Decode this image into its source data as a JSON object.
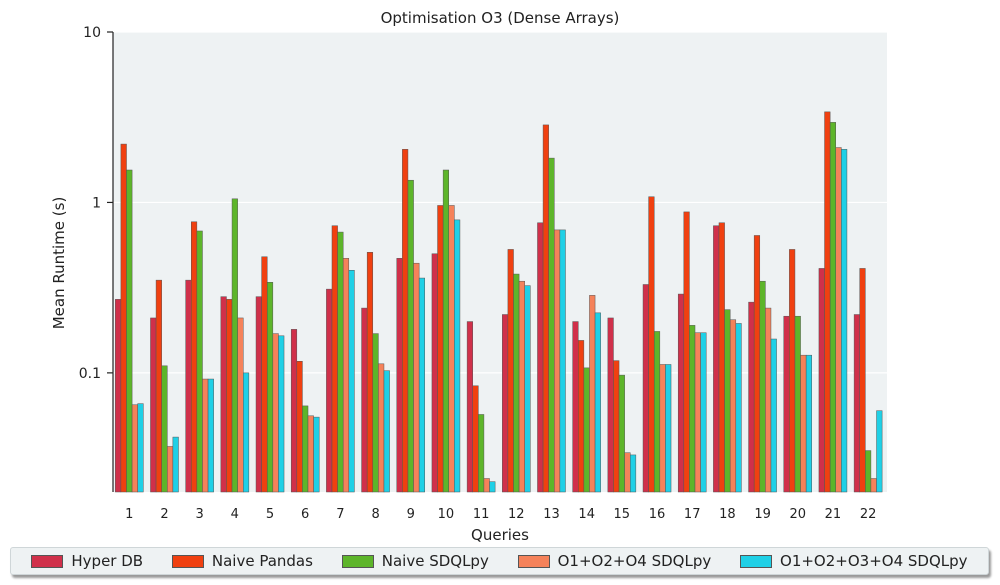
{
  "chart_data": {
    "type": "bar",
    "title": "Optimisation O3 (Dense Arrays)",
    "xlabel": "Queries",
    "ylabel": "Mean Runtime (s)",
    "yscale": "log",
    "ylim": [
      0.02,
      10
    ],
    "yticks": [
      0.1,
      1,
      10
    ],
    "ytick_labels": [
      "0.1",
      "1",
      "10"
    ],
    "grid": true,
    "legend_position": "bottom",
    "categories": [
      "1",
      "2",
      "3",
      "4",
      "5",
      "6",
      "7",
      "8",
      "9",
      "10",
      "11",
      "12",
      "13",
      "14",
      "15",
      "16",
      "17",
      "18",
      "19",
      "20",
      "21",
      "22"
    ],
    "series": [
      {
        "name": "Hyper DB",
        "color": "#d0304a",
        "values": [
          0.27,
          0.21,
          0.35,
          0.28,
          0.28,
          0.18,
          0.31,
          0.24,
          0.47,
          0.5,
          0.2,
          0.22,
          0.76,
          0.2,
          0.21,
          0.33,
          0.29,
          0.73,
          0.26,
          0.215,
          0.41,
          0.22
        ]
      },
      {
        "name": "Naive Pandas",
        "color": "#f04010",
        "values": [
          2.2,
          0.35,
          0.77,
          0.27,
          0.48,
          0.117,
          0.73,
          0.51,
          2.05,
          0.96,
          0.084,
          0.53,
          2.85,
          0.155,
          0.118,
          1.08,
          0.88,
          0.76,
          0.64,
          0.53,
          3.4,
          0.41
        ]
      },
      {
        "name": "Naive SDQLpy",
        "color": "#5db52a",
        "values": [
          1.55,
          0.11,
          0.68,
          1.05,
          0.34,
          0.064,
          0.67,
          0.17,
          1.35,
          1.55,
          0.057,
          0.38,
          1.82,
          0.107,
          0.097,
          0.175,
          0.19,
          0.235,
          0.345,
          0.215,
          2.95,
          0.035
        ]
      },
      {
        "name": "O1+O2+O4 SDQLpy",
        "color": "#f5825a",
        "values": [
          0.065,
          0.037,
          0.092,
          0.21,
          0.17,
          0.056,
          0.47,
          0.113,
          0.44,
          0.96,
          0.024,
          0.345,
          0.69,
          0.285,
          0.034,
          0.112,
          0.172,
          0.205,
          0.24,
          0.127,
          2.1,
          0.024
        ]
      },
      {
        "name": "O1+O2+O3+O4 SDQLpy",
        "color": "#1fd0e6",
        "values": [
          0.066,
          0.042,
          0.092,
          0.1,
          0.165,
          0.055,
          0.4,
          0.103,
          0.36,
          0.79,
          0.023,
          0.325,
          0.69,
          0.225,
          0.033,
          0.112,
          0.172,
          0.195,
          0.158,
          0.127,
          2.05,
          0.06
        ]
      }
    ]
  }
}
